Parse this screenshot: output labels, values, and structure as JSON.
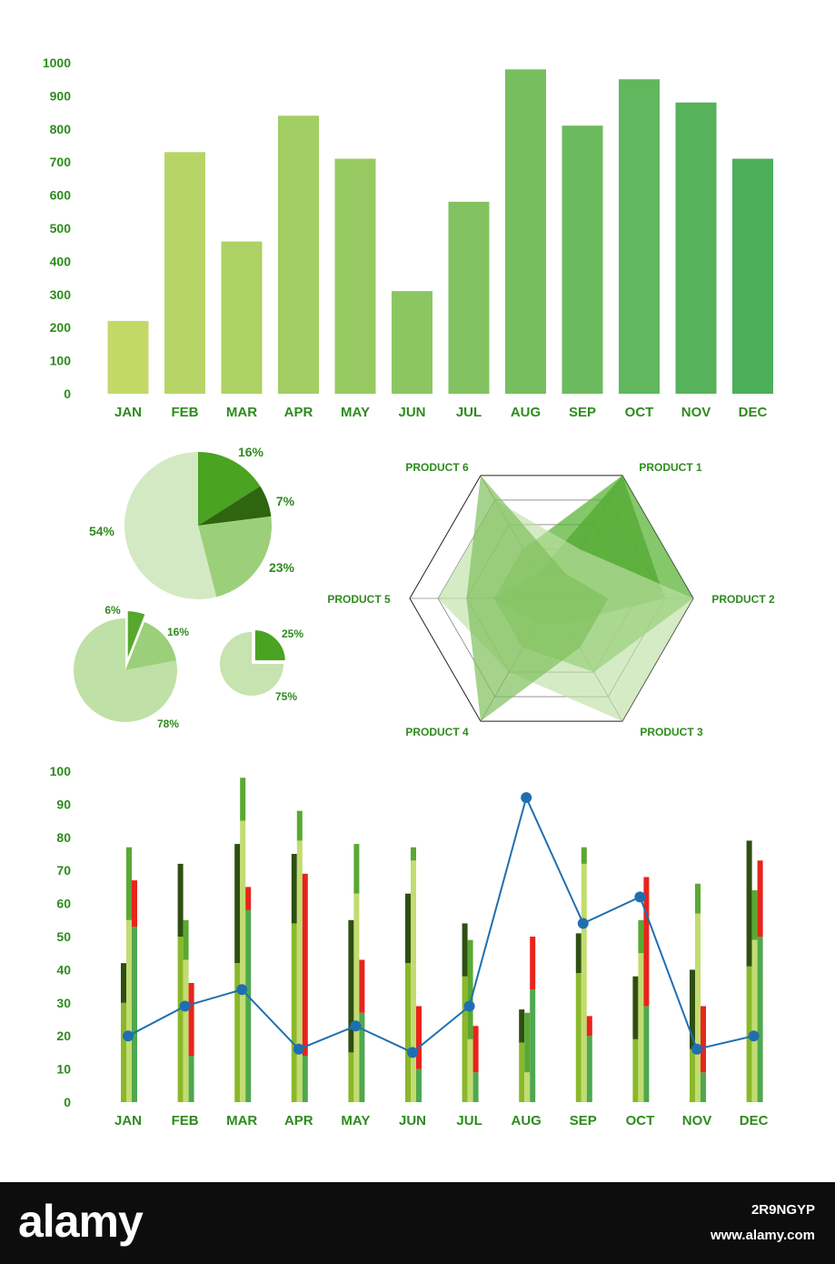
{
  "colors": {
    "label_green": "#2e8b1e",
    "bar_start": "#c2d968",
    "bar_end": "#4caf5a",
    "pie_dark": "#4aa321",
    "pie_darker": "#2f650f",
    "pie_mid": "#9ccf7a",
    "pie_light": "#d3e9c4",
    "radar_a": "#3f8f1f",
    "radar_b": "#5cb53a",
    "radar_c": "#bfe0a6",
    "radar_d": "#7fc05c",
    "line_blue": "#1f6fb0",
    "red": "#e8241c",
    "footer_bg": "#0d0d0d"
  },
  "chart_data": [
    {
      "type": "bar",
      "categories": [
        "JAN",
        "FEB",
        "MAR",
        "APR",
        "MAY",
        "JUN",
        "JUL",
        "AUG",
        "SEP",
        "OCT",
        "NOV",
        "DEC"
      ],
      "values": [
        220,
        730,
        460,
        840,
        710,
        310,
        580,
        980,
        810,
        950,
        880,
        710
      ],
      "yticks": [
        0,
        100,
        200,
        300,
        400,
        500,
        600,
        700,
        800,
        900,
        1000
      ],
      "ylim": [
        0,
        1000
      ]
    },
    {
      "type": "pie",
      "slices": [
        {
          "label": "16%",
          "value": 16
        },
        {
          "label": "7%",
          "value": 7
        },
        {
          "label": "23%",
          "value": 23
        },
        {
          "label": "54%",
          "value": 54
        }
      ]
    },
    {
      "type": "pie",
      "slices": [
        {
          "label": "6%",
          "value": 6
        },
        {
          "label": "16%",
          "value": 16
        },
        {
          "label": "78%",
          "value": 78
        }
      ]
    },
    {
      "type": "pie",
      "slices": [
        {
          "label": "25%",
          "value": 25
        },
        {
          "label": "75%",
          "value": 75
        }
      ]
    },
    {
      "type": "radar",
      "axes": [
        "PRODUCT 1",
        "PRODUCT 2",
        "PRODUCT 3",
        "PRODUCT 4",
        "PRODUCT 5",
        "PRODUCT 6"
      ],
      "rmax": 5,
      "series": [
        {
          "values": [
            5,
            4,
            1,
            1,
            2,
            1
          ]
        },
        {
          "values": [
            5,
            5,
            3,
            2,
            2,
            2
          ]
        },
        {
          "values": [
            2,
            5,
            5,
            3,
            4,
            4
          ]
        },
        {
          "values": [
            1,
            2,
            2,
            5,
            3,
            5
          ]
        }
      ]
    },
    {
      "type": "bar",
      "categories": [
        "JAN",
        "FEB",
        "MAR",
        "APR",
        "MAY",
        "JUN",
        "JUL",
        "AUG",
        "SEP",
        "OCT",
        "NOV",
        "DEC"
      ],
      "yticks": [
        0,
        10,
        20,
        30,
        40,
        50,
        60,
        70,
        80,
        90,
        100
      ],
      "ylim": [
        0,
        100
      ],
      "stacked_columns": [
        [
          [
            30,
            42
          ],
          [
            55,
            77
          ],
          [
            53,
            67
          ]
        ],
        [
          [
            50,
            72
          ],
          [
            43,
            55
          ],
          [
            14,
            36
          ]
        ],
        [
          [
            42,
            78
          ],
          [
            85,
            98
          ],
          [
            58,
            65
          ]
        ],
        [
          [
            54,
            75
          ],
          [
            79,
            88
          ],
          [
            14,
            69
          ]
        ],
        [
          [
            15,
            55
          ],
          [
            63,
            78
          ],
          [
            27,
            43
          ]
        ],
        [
          [
            42,
            63
          ],
          [
            73,
            77
          ],
          [
            10,
            29
          ]
        ],
        [
          [
            38,
            54
          ],
          [
            19,
            49
          ],
          [
            9,
            23
          ]
        ],
        [
          [
            18,
            28
          ],
          [
            9,
            27
          ],
          [
            34,
            50
          ]
        ],
        [
          [
            39,
            51
          ],
          [
            72,
            77
          ],
          [
            20,
            26
          ]
        ],
        [
          [
            19,
            38
          ],
          [
            45,
            55
          ],
          [
            29,
            68
          ]
        ],
        [
          [
            16,
            40
          ],
          [
            57,
            66
          ],
          [
            9,
            29
          ]
        ],
        [
          [
            41,
            79
          ],
          [
            49,
            64
          ],
          [
            50,
            73
          ]
        ]
      ],
      "line": [
        20,
        29,
        34,
        16,
        23,
        15,
        29,
        92,
        54,
        62,
        16,
        20
      ]
    }
  ],
  "footer": {
    "logo_text": "alamy",
    "image_id": "2R9NGYP",
    "site": "www.alamy.com"
  }
}
